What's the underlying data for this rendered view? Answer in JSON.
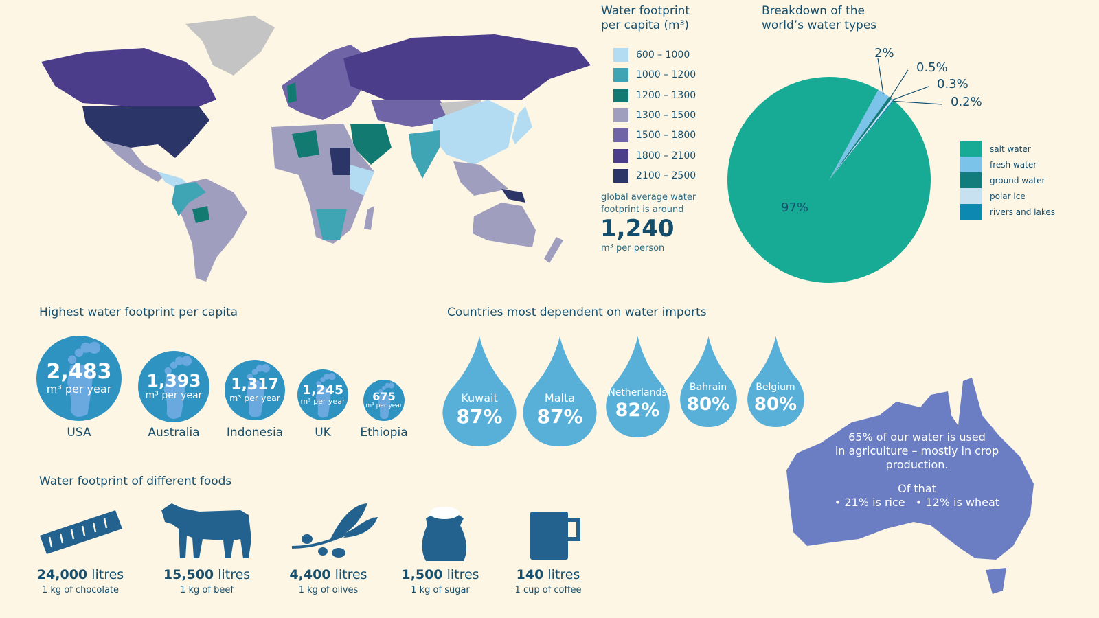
{
  "map_legend": {
    "title_line1": "Water footprint",
    "title_line2": "per capita (m³)",
    "items": [
      {
        "label": "600 – 1000",
        "color": "#b3dcf2"
      },
      {
        "label": "1000 – 1200",
        "color": "#3fa5b4"
      },
      {
        "label": "1200 – 1300",
        "color": "#137a72"
      },
      {
        "label": "1300 – 1500",
        "color": "#a09ebf"
      },
      {
        "label": "1500 – 1800",
        "color": "#6f64a6"
      },
      {
        "label": "1800 – 2100",
        "color": "#4b3d8a"
      },
      {
        "label": "2100 – 2500",
        "color": "#2b3568"
      }
    ],
    "global_avg_line1": "global average water",
    "global_avg_line2": "footprint is around",
    "global_avg_value": "1,240",
    "global_avg_unit": "m³ per person"
  },
  "chart_data": {
    "type": "pie",
    "title": "Breakdown of the world’s water types",
    "title_line1": "Breakdown of the",
    "title_line2": "world’s water types",
    "legend_position": "right",
    "slices": [
      {
        "name": "salt water",
        "value": 97,
        "label": "97%",
        "color": "#17ab95"
      },
      {
        "name": "fresh water",
        "value": 2,
        "label": "2%",
        "color": "#7cc3ea"
      },
      {
        "name": "ground water",
        "value": 0.5,
        "label": "0.5%",
        "color": "#127c7d"
      },
      {
        "name": "polar ice",
        "value": 0.3,
        "label": "0.3%",
        "color": "#c8e1f1"
      },
      {
        "name": "rivers and lakes",
        "value": 0.2,
        "label": "0.2%",
        "color": "#0d88b0"
      }
    ]
  },
  "highest": {
    "title": "Highest water footprint per capita",
    "unit": "m³ per year",
    "items": [
      {
        "country": "USA",
        "value": "2,483"
      },
      {
        "country": "Australia",
        "value": "1,393"
      },
      {
        "country": "Indonesia",
        "value": "1,317"
      },
      {
        "country": "UK",
        "value": "1,245"
      },
      {
        "country": "Ethiopia",
        "value": "675"
      }
    ]
  },
  "imports": {
    "title": "Countries most dependent on water imports",
    "items": [
      {
        "country": "Kuwait",
        "value": "87%"
      },
      {
        "country": "Malta",
        "value": "87%"
      },
      {
        "country": "Netherlands",
        "value": "82%"
      },
      {
        "country": "Bahrain",
        "value": "80%"
      },
      {
        "country": "Belgium",
        "value": "80%"
      }
    ]
  },
  "agriculture": {
    "line1": "65% of our water is used",
    "line2": "in agriculture – mostly in crop",
    "line3": "production.",
    "line4": "Of that",
    "line5": "• 21% is rice   • 12% is wheat",
    "color": "#6b7ec3"
  },
  "foods": {
    "title": "Water footprint of different foods",
    "unit": "litres",
    "items": [
      {
        "value": "24,000",
        "label": "1 kg of chocolate",
        "icon": "chocolate-bar-icon"
      },
      {
        "value": "15,500",
        "label": "1 kg of beef",
        "icon": "cow-icon"
      },
      {
        "value": "4,400",
        "label": "1 kg of olives",
        "icon": "olive-branch-icon"
      },
      {
        "value": "1,500",
        "label": "1 kg of sugar",
        "icon": "sugar-sack-icon"
      },
      {
        "value": "140",
        "label": "1 cup of coffee",
        "icon": "coffee-mug-icon"
      }
    ]
  }
}
